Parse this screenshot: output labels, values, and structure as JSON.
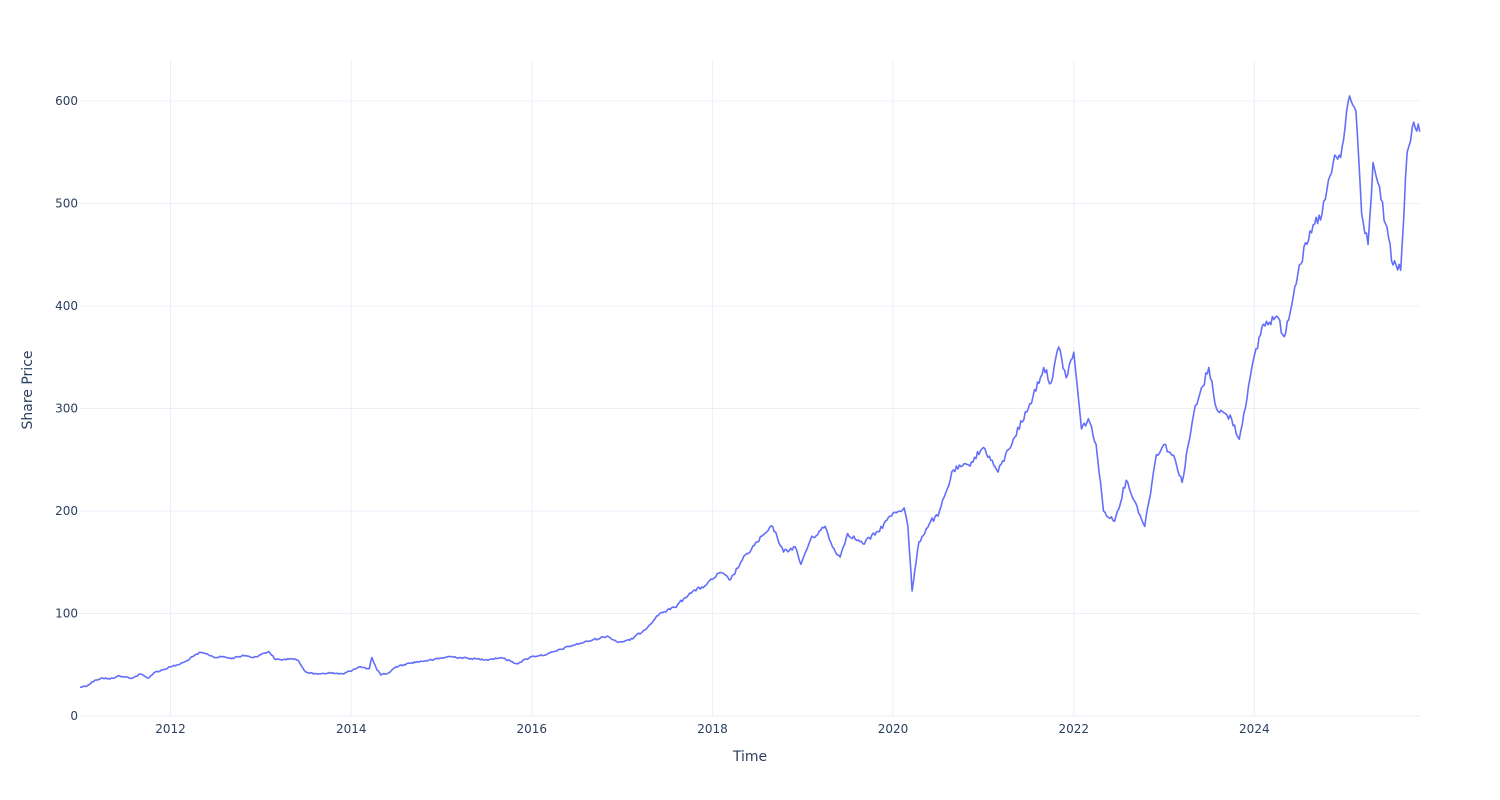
{
  "chart_data": {
    "type": "line",
    "title": "",
    "xlabel": "Time",
    "ylabel": "Share Price",
    "x_type": "date",
    "xlim": [
      "2010-12-31",
      "2025-11-01"
    ],
    "ylim": [
      0,
      640
    ],
    "x_ticks": [
      {
        "label": "2012",
        "value": "2012-01-01"
      },
      {
        "label": "2014",
        "value": "2014-01-01"
      },
      {
        "label": "2016",
        "value": "2016-01-01"
      },
      {
        "label": "2018",
        "value": "2018-01-01"
      },
      {
        "label": "2020",
        "value": "2020-01-01"
      },
      {
        "label": "2022",
        "value": "2022-01-01"
      },
      {
        "label": "2024",
        "value": "2024-01-01"
      }
    ],
    "y_ticks": [
      0,
      100,
      200,
      300,
      400,
      500,
      600
    ],
    "grid": true,
    "legend": "none",
    "series": [
      {
        "color": "#636efa",
        "points": [
          [
            "2010-12-31",
            28
          ],
          [
            "2011-02-01",
            30
          ],
          [
            "2011-03-01",
            35
          ],
          [
            "2011-04-01",
            37
          ],
          [
            "2011-05-01",
            36
          ],
          [
            "2011-06-01",
            39
          ],
          [
            "2011-07-01",
            38
          ],
          [
            "2011-08-01",
            37
          ],
          [
            "2011-09-01",
            41
          ],
          [
            "2011-10-01",
            37
          ],
          [
            "2011-11-01",
            43
          ],
          [
            "2011-12-01",
            45
          ],
          [
            "2012-01-01",
            48
          ],
          [
            "2012-02-01",
            50
          ],
          [
            "2012-03-01",
            53
          ],
          [
            "2012-04-01",
            58
          ],
          [
            "2012-05-01",
            62
          ],
          [
            "2012-06-01",
            60
          ],
          [
            "2012-07-01",
            57
          ],
          [
            "2012-08-01",
            58
          ],
          [
            "2012-09-01",
            56
          ],
          [
            "2012-10-01",
            58
          ],
          [
            "2012-11-01",
            59
          ],
          [
            "2012-12-01",
            57
          ],
          [
            "2013-01-01",
            60
          ],
          [
            "2013-02-01",
            63
          ],
          [
            "2013-03-01",
            55
          ],
          [
            "2013-04-01",
            55
          ],
          [
            "2013-05-01",
            56
          ],
          [
            "2013-06-01",
            54
          ],
          [
            "2013-07-01",
            43
          ],
          [
            "2013-08-01",
            41
          ],
          [
            "2013-10-01",
            42
          ],
          [
            "2013-12-01",
            41
          ],
          [
            "2014-02-01",
            48
          ],
          [
            "2014-03-15",
            46
          ],
          [
            "2014-03-25",
            57
          ],
          [
            "2014-04-15",
            45
          ],
          [
            "2014-05-01",
            40
          ],
          [
            "2014-06-01",
            42
          ],
          [
            "2014-07-01",
            48
          ],
          [
            "2014-09-01",
            52
          ],
          [
            "2014-12-01",
            55
          ],
          [
            "2015-02-01",
            58
          ],
          [
            "2015-05-01",
            56
          ],
          [
            "2015-07-01",
            55
          ],
          [
            "2015-09-01",
            57
          ],
          [
            "2015-11-01",
            51
          ],
          [
            "2016-01-01",
            58
          ],
          [
            "2016-03-01",
            60
          ],
          [
            "2016-06-01",
            68
          ],
          [
            "2016-09-01",
            74
          ],
          [
            "2016-11-01",
            78
          ],
          [
            "2016-12-15",
            72
          ],
          [
            "2017-02-01",
            74
          ],
          [
            "2017-04-01",
            84
          ],
          [
            "2017-06-01",
            100
          ],
          [
            "2017-08-01",
            106
          ],
          [
            "2017-10-01",
            120
          ],
          [
            "2017-12-01",
            127
          ],
          [
            "2018-02-01",
            140
          ],
          [
            "2018-03-15",
            133
          ],
          [
            "2018-05-01",
            152
          ],
          [
            "2018-07-01",
            170
          ],
          [
            "2018-09-01",
            185
          ],
          [
            "2018-10-15",
            160
          ],
          [
            "2018-12-01",
            165
          ],
          [
            "2018-12-24",
            148
          ],
          [
            "2019-02-01",
            172
          ],
          [
            "2019-04-01",
            185
          ],
          [
            "2019-05-01",
            165
          ],
          [
            "2019-06-01",
            155
          ],
          [
            "2019-07-01",
            178
          ],
          [
            "2019-09-01",
            168
          ],
          [
            "2019-11-01",
            180
          ],
          [
            "2020-01-01",
            198
          ],
          [
            "2020-02-15",
            203
          ],
          [
            "2020-03-01",
            185
          ],
          [
            "2020-03-18",
            122
          ],
          [
            "2020-04-15",
            170
          ],
          [
            "2020-06-01",
            190
          ],
          [
            "2020-07-01",
            195
          ],
          [
            "2020-09-01",
            240
          ],
          [
            "2020-11-01",
            245
          ],
          [
            "2021-01-01",
            262
          ],
          [
            "2021-03-01",
            238
          ],
          [
            "2021-05-01",
            270
          ],
          [
            "2021-07-01",
            300
          ],
          [
            "2021-09-01",
            340
          ],
          [
            "2021-10-01",
            325
          ],
          [
            "2021-11-01",
            360
          ],
          [
            "2021-12-01",
            330
          ],
          [
            "2022-01-01",
            355
          ],
          [
            "2022-02-01",
            280
          ],
          [
            "2022-03-01",
            290
          ],
          [
            "2022-04-01",
            265
          ],
          [
            "2022-05-01",
            200
          ],
          [
            "2022-06-15",
            190
          ],
          [
            "2022-08-01",
            230
          ],
          [
            "2022-10-15",
            185
          ],
          [
            "2022-12-01",
            255
          ],
          [
            "2023-01-01",
            265
          ],
          [
            "2023-02-15",
            250
          ],
          [
            "2023-03-15",
            228
          ],
          [
            "2023-05-01",
            295
          ],
          [
            "2023-07-01",
            340
          ],
          [
            "2023-08-01",
            300
          ],
          [
            "2023-10-01",
            290
          ],
          [
            "2023-11-01",
            270
          ],
          [
            "2023-12-15",
            330
          ],
          [
            "2024-02-01",
            380
          ],
          [
            "2024-04-01",
            390
          ],
          [
            "2024-05-01",
            370
          ],
          [
            "2024-07-01",
            440
          ],
          [
            "2024-09-01",
            480
          ],
          [
            "2024-10-01",
            490
          ],
          [
            "2024-11-15",
            540
          ],
          [
            "2024-12-15",
            545
          ],
          [
            "2025-01-20",
            605
          ],
          [
            "2025-02-15",
            590
          ],
          [
            "2025-03-10",
            490
          ],
          [
            "2025-04-05",
            460
          ],
          [
            "2025-04-25",
            540
          ],
          [
            "2025-05-15",
            520
          ],
          [
            "2025-06-15",
            480
          ],
          [
            "2025-07-15",
            440
          ],
          [
            "2025-08-15",
            435
          ],
          [
            "2025-09-10",
            550
          ],
          [
            "2025-10-01",
            575
          ],
          [
            "2025-10-31",
            570
          ]
        ]
      }
    ]
  }
}
